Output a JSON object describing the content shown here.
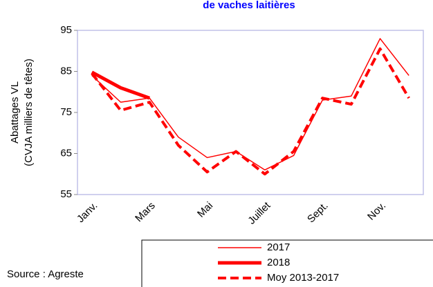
{
  "chart_data": {
    "type": "line",
    "title": "de vaches laitières",
    "y_label": [
      "Abattages VL",
      "(CVJA milliers de têtes)"
    ],
    "source": "Source : Agreste",
    "categories": [
      "Janv.",
      null,
      "Mars",
      null,
      "Mai",
      null,
      "Juillet",
      null,
      "Sept.",
      null,
      "Nov.",
      null
    ],
    "series": [
      {
        "name": "2017",
        "color": "#ff0000",
        "style": "thin",
        "values": [
          84,
          77.5,
          78.5,
          69,
          64,
          65.5,
          61,
          64.5,
          78,
          79,
          93,
          84
        ]
      },
      {
        "name": "2018",
        "color": "#ff0000",
        "style": "thick",
        "values": [
          84.8,
          81,
          78.5,
          null,
          null,
          null,
          null,
          null,
          null,
          null,
          null,
          null
        ]
      },
      {
        "name": "Moy 2013-2017",
        "color": "#ff0000",
        "style": "dashed",
        "values": [
          84.5,
          75.5,
          77.5,
          67,
          60.5,
          65.5,
          60,
          65.5,
          78.5,
          77,
          90.5,
          78.5
        ]
      }
    ],
    "ylim": [
      55,
      95
    ],
    "yticks": [
      55,
      65,
      75,
      85,
      95
    ]
  }
}
